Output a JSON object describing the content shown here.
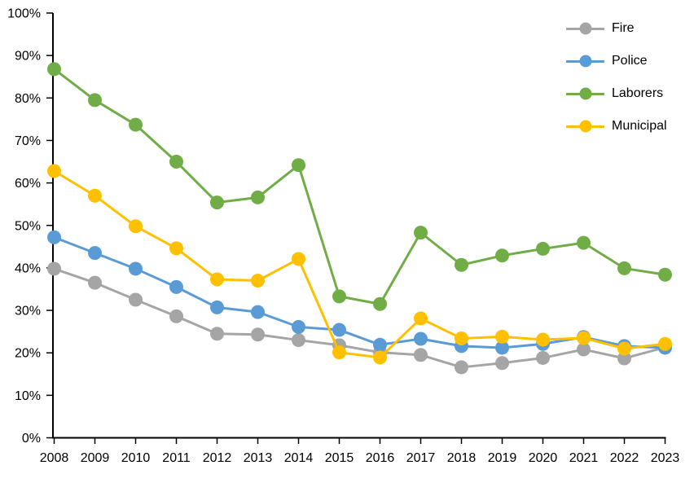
{
  "chart_data": {
    "type": "line",
    "title": "",
    "xlabel": "",
    "ylabel": "",
    "categories": [
      "2008",
      "2009",
      "2010",
      "2011",
      "2012",
      "2013",
      "2014",
      "2015",
      "2016",
      "2017",
      "2018",
      "2019",
      "2020",
      "2021",
      "2022",
      "2023"
    ],
    "series": [
      {
        "name": "Fire",
        "color": "#A5A5A5",
        "values": [
          39.8,
          36.5,
          32.5,
          28.6,
          24.5,
          24.3,
          23.0,
          21.8,
          20.1,
          19.5,
          16.6,
          17.6,
          18.8,
          20.8,
          18.7,
          21.3
        ]
      },
      {
        "name": "Police",
        "color": "#5B9BD5",
        "values": [
          47.2,
          43.5,
          39.8,
          35.5,
          30.7,
          29.6,
          26.1,
          25.4,
          21.9,
          23.3,
          21.6,
          21.2,
          22.1,
          23.7,
          21.6,
          21.2
        ]
      },
      {
        "name": "Laborers",
        "color": "#70AD47",
        "values": [
          86.8,
          79.5,
          73.7,
          65.0,
          55.4,
          56.6,
          64.2,
          33.3,
          31.5,
          48.3,
          40.7,
          42.9,
          44.5,
          45.9,
          39.9,
          38.4
        ]
      },
      {
        "name": "Municipal",
        "color": "#FFC000",
        "values": [
          62.8,
          57.0,
          49.8,
          44.6,
          37.3,
          37.0,
          42.1,
          20.1,
          18.9,
          28.1,
          23.4,
          23.8,
          23.1,
          23.5,
          21.0,
          22.1
        ]
      }
    ],
    "ylim": [
      0,
      100
    ],
    "y_tick_step": 10,
    "y_tick_labels": [
      "0%",
      "10%",
      "20%",
      "30%",
      "40%",
      "50%",
      "60%",
      "70%",
      "80%",
      "90%",
      "100%"
    ],
    "legend_position": "top-right",
    "grid": false,
    "axis_color": "#000000",
    "text_color": "#000000"
  }
}
